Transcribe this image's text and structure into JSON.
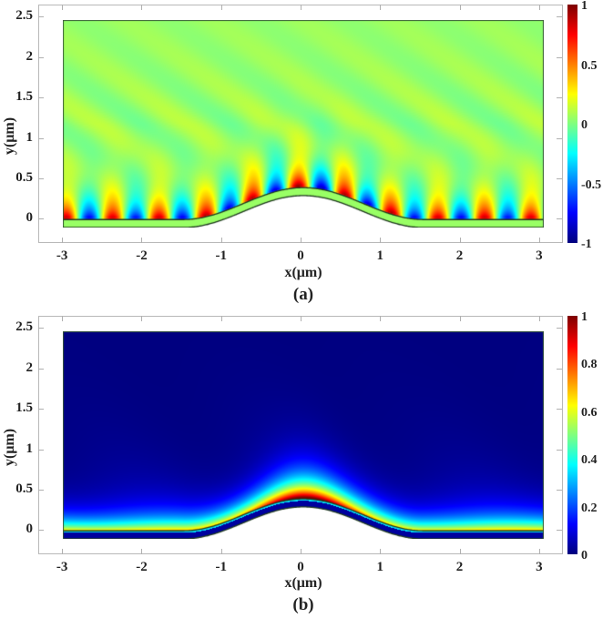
{
  "figure": {
    "panels": [
      {
        "id": "a",
        "caption": "(a)",
        "xlabel": "x(μm)",
        "ylabel": "y(μm)",
        "colormap": "jet",
        "colorbar_ticks": [
          "1",
          "0.5",
          "0",
          "-0.5",
          "-1"
        ]
      },
      {
        "id": "b",
        "caption": "(b)",
        "xlabel": "x(μm)",
        "ylabel": "y(μm)",
        "colormap": "jet",
        "colorbar_ticks": [
          "1",
          "0.8",
          "0.6",
          "0.4",
          "0.2",
          "0"
        ]
      }
    ],
    "x_ticks": [
      "-3",
      "-2",
      "-1",
      "0",
      "1",
      "2",
      "3"
    ],
    "y_ticks": [
      "2.5",
      "2",
      "1.5",
      "1",
      "0.5",
      "0"
    ]
  },
  "chart_data": [
    {
      "type": "heatmap",
      "title": "(a)",
      "xlabel": "x(μm)",
      "ylabel": "y(μm)",
      "xlim": [
        -3.3,
        3.3
      ],
      "ylim": [
        -0.3,
        2.65
      ],
      "data_extent": {
        "x": [
          -3,
          3
        ],
        "y": [
          -0.1,
          2.5
        ]
      },
      "x_ticks": [
        -3,
        -2,
        -1,
        0,
        1,
        2,
        3
      ],
      "y_ticks": [
        0,
        0.5,
        1,
        1.5,
        2,
        2.5
      ],
      "colorbar": {
        "min": -1,
        "max": 1,
        "ticks": [
          -1,
          -0.5,
          0,
          0.5,
          1
        ],
        "colormap": "jet"
      },
      "description": "Normalized field component: oscillating standing-wave lobes (alternating +/-) along a surface with a Gaussian-like bump centered at x=0 (peak y≈0.4); lobe period ≈0.58 μm; field near 0 away from surface",
      "surface": {
        "flat_y": 0,
        "bump_center": 0,
        "bump_height": 0.4,
        "bump_halfwidth": 1.5,
        "layer_thickness": 0.1
      },
      "grid": false
    },
    {
      "type": "heatmap",
      "title": "(b)",
      "xlabel": "x(μm)",
      "ylabel": "y(μm)",
      "xlim": [
        -3.3,
        3.3
      ],
      "ylim": [
        -0.3,
        2.65
      ],
      "data_extent": {
        "x": [
          -3,
          3
        ],
        "y": [
          -0.1,
          2.5
        ]
      },
      "x_ticks": [
        -3,
        -2,
        -1,
        0,
        1,
        2,
        3
      ],
      "y_ticks": [
        0,
        0.5,
        1,
        1.5,
        2,
        2.5
      ],
      "colorbar": {
        "min": 0,
        "max": 1,
        "ticks": [
          0,
          0.2,
          0.4,
          0.6,
          0.8,
          1
        ],
        "colormap": "jet"
      },
      "description": "Normalized field intensity: maximum (~1) just above bump apex at x=0, y≈0.42; ~0.6 along flat surface near y≈0.05, decaying to ~0 by y≈0.5",
      "surface": {
        "flat_y": 0,
        "bump_center": 0,
        "bump_height": 0.4,
        "bump_halfwidth": 1.5,
        "layer_thickness": 0.1
      },
      "grid": false
    }
  ]
}
